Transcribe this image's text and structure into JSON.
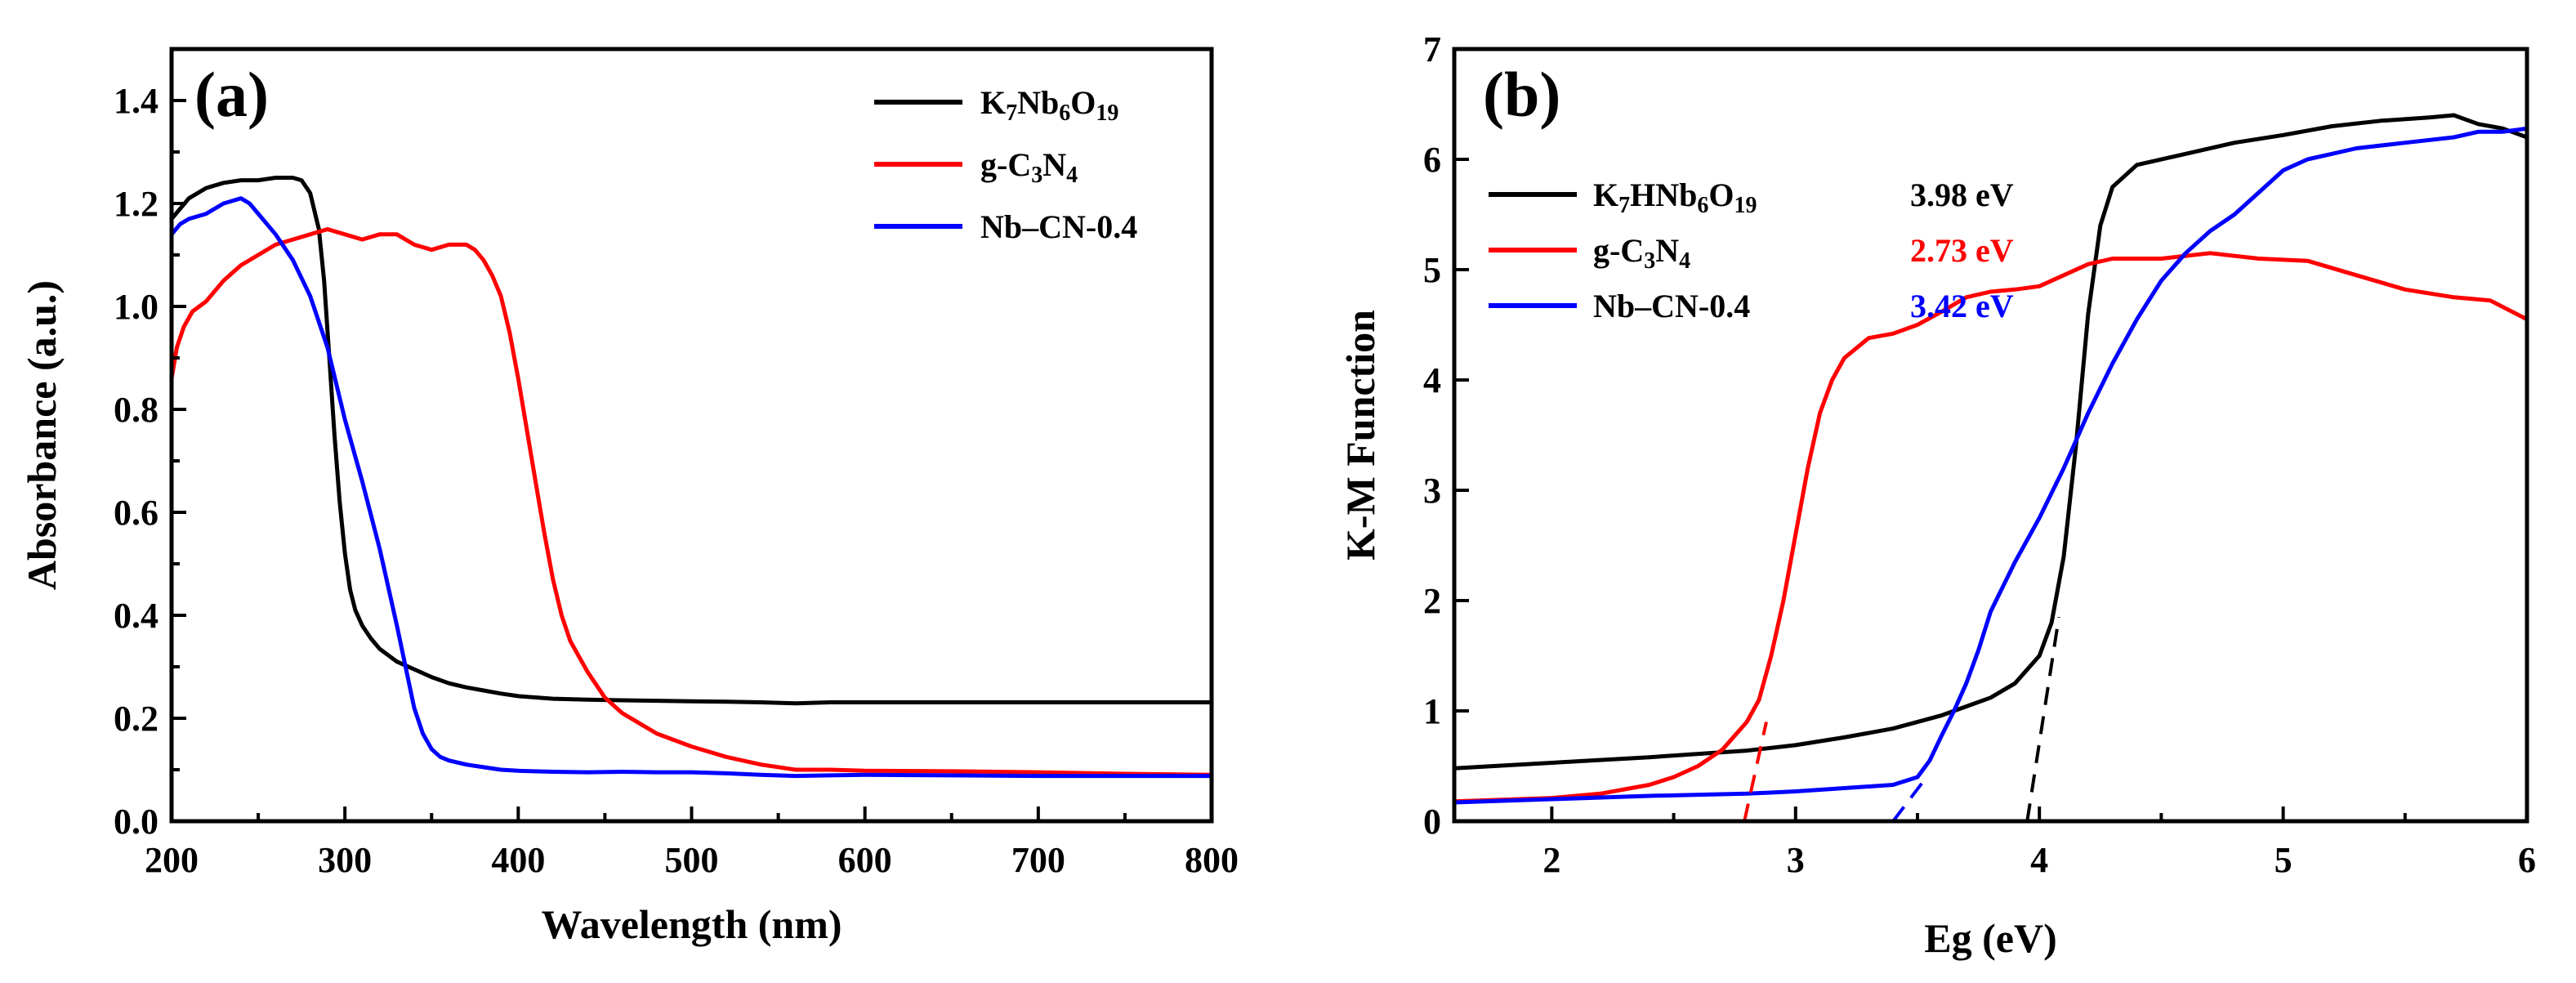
{
  "chart_data": [
    {
      "panel": "(a)",
      "type": "line",
      "title": "",
      "xlabel": "Wavelength (nm)",
      "ylabel": "Absorbance (a.u.)",
      "xlim": [
        200,
        800
      ],
      "ylim": [
        0.0,
        1.5
      ],
      "xticks": [
        200,
        300,
        400,
        500,
        600,
        700,
        800
      ],
      "xtick_labels": [
        "200",
        "300",
        "400",
        "500",
        "600",
        "700",
        "800"
      ],
      "yticks": [
        0.0,
        0.2,
        0.4,
        0.6,
        0.8,
        1.0,
        1.2,
        1.4
      ],
      "ytick_labels": [
        "0.0",
        "0.2",
        "0.4",
        "0.6",
        "0.8",
        "1.0",
        "1.2",
        "1.4"
      ],
      "legend_position": "top-right",
      "series": [
        {
          "name": "K7Nb6O19",
          "label_parts": [
            [
              "K",
              ""
            ],
            [
              "7",
              "sub"
            ],
            [
              "Nb",
              ""
            ],
            [
              "6",
              "sub"
            ],
            [
              "O",
              ""
            ],
            [
              "19",
              "sub"
            ]
          ],
          "color": "#000000",
          "x": [
            200,
            205,
            210,
            220,
            230,
            240,
            250,
            260,
            270,
            275,
            280,
            285,
            288,
            291,
            294,
            297,
            300,
            303,
            306,
            310,
            315,
            320,
            330,
            340,
            350,
            360,
            370,
            380,
            390,
            400,
            420,
            440,
            460,
            480,
            500,
            520,
            540,
            560,
            580,
            600,
            650,
            700,
            750,
            800
          ],
          "y": [
            1.17,
            1.19,
            1.21,
            1.23,
            1.24,
            1.245,
            1.245,
            1.25,
            1.25,
            1.245,
            1.22,
            1.15,
            1.05,
            0.9,
            0.75,
            0.62,
            0.52,
            0.45,
            0.41,
            0.38,
            0.355,
            0.335,
            0.31,
            0.295,
            0.28,
            0.268,
            0.26,
            0.254,
            0.248,
            0.243,
            0.238,
            0.236,
            0.235,
            0.234,
            0.233,
            0.232,
            0.231,
            0.229,
            0.231,
            0.231,
            0.231,
            0.231,
            0.231,
            0.231
          ]
        },
        {
          "name": "g-C3N4",
          "label_parts": [
            [
              "g-C",
              ""
            ],
            [
              "3",
              "sub"
            ],
            [
              "N",
              ""
            ],
            [
              "4",
              "sub"
            ]
          ],
          "color": "#ff0000",
          "x": [
            200,
            203,
            207,
            212,
            220,
            230,
            240,
            250,
            260,
            270,
            280,
            290,
            300,
            310,
            320,
            330,
            340,
            350,
            360,
            370,
            375,
            380,
            385,
            390,
            395,
            400,
            405,
            410,
            415,
            420,
            425,
            430,
            440,
            450,
            460,
            480,
            500,
            520,
            540,
            560,
            580,
            600,
            650,
            700,
            750,
            800
          ],
          "y": [
            0.86,
            0.92,
            0.96,
            0.99,
            1.01,
            1.05,
            1.08,
            1.1,
            1.12,
            1.13,
            1.14,
            1.15,
            1.14,
            1.13,
            1.14,
            1.14,
            1.12,
            1.11,
            1.12,
            1.12,
            1.11,
            1.09,
            1.06,
            1.02,
            0.95,
            0.86,
            0.76,
            0.66,
            0.56,
            0.47,
            0.4,
            0.35,
            0.29,
            0.24,
            0.21,
            0.17,
            0.145,
            0.125,
            0.11,
            0.1,
            0.1,
            0.098,
            0.097,
            0.095,
            0.092,
            0.09
          ]
        },
        {
          "name": "Nb–CN-0.4",
          "label_parts": [
            [
              "Nb–CN-0.4",
              ""
            ]
          ],
          "color": "#0000ff",
          "x": [
            200,
            205,
            210,
            220,
            230,
            235,
            240,
            245,
            250,
            255,
            260,
            270,
            280,
            290,
            300,
            310,
            320,
            330,
            335,
            340,
            345,
            350,
            355,
            360,
            370,
            380,
            390,
            400,
            420,
            440,
            460,
            480,
            500,
            520,
            540,
            560,
            580,
            600,
            650,
            700,
            750,
            800
          ],
          "y": [
            1.14,
            1.16,
            1.17,
            1.18,
            1.2,
            1.205,
            1.21,
            1.2,
            1.18,
            1.16,
            1.14,
            1.09,
            1.02,
            0.92,
            0.78,
            0.66,
            0.53,
            0.38,
            0.3,
            0.22,
            0.17,
            0.14,
            0.125,
            0.118,
            0.11,
            0.105,
            0.1,
            0.098,
            0.096,
            0.095,
            0.096,
            0.095,
            0.095,
            0.093,
            0.09,
            0.088,
            0.089,
            0.09,
            0.089,
            0.088,
            0.088,
            0.088
          ]
        }
      ]
    },
    {
      "panel": "(b)",
      "type": "line",
      "title": "",
      "xlabel": "Eg (eV)",
      "ylabel": "K-M Function",
      "xlim": [
        1.6,
        6.0
      ],
      "ylim": [
        0,
        7
      ],
      "xticks": [
        2,
        3,
        4,
        5,
        6
      ],
      "xtick_labels": [
        "2",
        "3",
        "4",
        "5",
        "6"
      ],
      "yticks": [
        0,
        1,
        2,
        3,
        4,
        5,
        6,
        7
      ],
      "ytick_labels": [
        "0",
        "1",
        "2",
        "3",
        "4",
        "5",
        "6",
        "7"
      ],
      "legend_position": "top-left",
      "series": [
        {
          "name": "K7HNb6O19",
          "label_parts": [
            [
              "K",
              ""
            ],
            [
              "7",
              "sub"
            ],
            [
              "HNb",
              ""
            ],
            [
              "6",
              "sub"
            ],
            [
              "O",
              ""
            ],
            [
              "19",
              "sub"
            ]
          ],
          "band_gap": "3.98 eV",
          "color": "#000000",
          "x": [
            1.6,
            2.0,
            2.4,
            2.8,
            3.0,
            3.2,
            3.4,
            3.6,
            3.8,
            3.9,
            4.0,
            4.05,
            4.1,
            4.15,
            4.2,
            4.25,
            4.3,
            4.4,
            4.6,
            4.8,
            5.0,
            5.2,
            5.4,
            5.6,
            5.7,
            5.8,
            5.9,
            6.0
          ],
          "y": [
            0.48,
            0.53,
            0.58,
            0.64,
            0.69,
            0.76,
            0.84,
            0.96,
            1.12,
            1.25,
            1.5,
            1.8,
            2.4,
            3.4,
            4.6,
            5.4,
            5.75,
            5.95,
            6.05,
            6.15,
            6.22,
            6.3,
            6.35,
            6.38,
            6.4,
            6.32,
            6.28,
            6.2
          ]
        },
        {
          "name": "g-C3N4",
          "label_parts": [
            [
              "g-C",
              ""
            ],
            [
              "3",
              "sub"
            ],
            [
              "N",
              ""
            ],
            [
              "4",
              "sub"
            ]
          ],
          "band_gap": "2.73 eV",
          "color": "#ff0000",
          "x": [
            1.6,
            2.0,
            2.2,
            2.4,
            2.5,
            2.6,
            2.7,
            2.8,
            2.85,
            2.9,
            2.95,
            3.0,
            3.05,
            3.1,
            3.15,
            3.2,
            3.3,
            3.4,
            3.5,
            3.6,
            3.7,
            3.8,
            3.9,
            4.0,
            4.1,
            4.2,
            4.3,
            4.5,
            4.7,
            4.9,
            5.1,
            5.3,
            5.5,
            5.7,
            5.85,
            6.0
          ],
          "y": [
            0.18,
            0.21,
            0.25,
            0.33,
            0.4,
            0.5,
            0.65,
            0.9,
            1.1,
            1.5,
            2.0,
            2.6,
            3.2,
            3.7,
            4.0,
            4.2,
            4.38,
            4.42,
            4.5,
            4.62,
            4.75,
            4.8,
            4.82,
            4.85,
            4.95,
            5.05,
            5.1,
            5.1,
            5.15,
            5.1,
            5.08,
            4.95,
            4.82,
            4.75,
            4.72,
            4.55
          ]
        },
        {
          "name": "Nb–CN-0.4",
          "label_parts": [
            [
              "Nb–CN-0.4",
              ""
            ]
          ],
          "band_gap": "3.42 eV",
          "color": "#0000ff",
          "x": [
            1.6,
            2.0,
            2.4,
            2.8,
            3.0,
            3.2,
            3.4,
            3.5,
            3.55,
            3.6,
            3.65,
            3.7,
            3.75,
            3.8,
            3.9,
            4.0,
            4.1,
            4.2,
            4.3,
            4.4,
            4.5,
            4.6,
            4.7,
            4.8,
            4.9,
            5.0,
            5.1,
            5.2,
            5.3,
            5.5,
            5.7,
            5.8,
            5.9,
            6.0
          ],
          "y": [
            0.17,
            0.2,
            0.23,
            0.25,
            0.27,
            0.3,
            0.33,
            0.4,
            0.55,
            0.78,
            1.0,
            1.25,
            1.55,
            1.9,
            2.35,
            2.75,
            3.2,
            3.7,
            4.15,
            4.55,
            4.9,
            5.15,
            5.35,
            5.5,
            5.7,
            5.9,
            6.0,
            6.05,
            6.1,
            6.15,
            6.2,
            6.25,
            6.25,
            6.28
          ]
        }
      ],
      "tangent_lines": [
        {
          "series": "g-C3N4",
          "color": "#ff0000",
          "x": [
            2.79,
            2.88
          ],
          "y": [
            0,
            0.9
          ]
        },
        {
          "series": "Nb–CN-0.4",
          "color": "#0000ff",
          "x": [
            3.4,
            3.52
          ],
          "y": [
            0,
            0.35
          ]
        },
        {
          "series": "K7HNb6O19",
          "color": "#000000",
          "x": [
            3.95,
            4.08
          ],
          "y": [
            0,
            1.85
          ]
        }
      ]
    }
  ]
}
